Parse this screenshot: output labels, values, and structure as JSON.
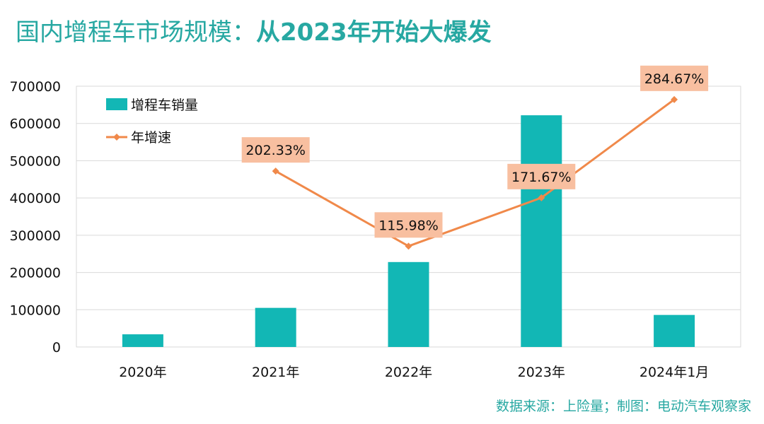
{
  "header": {
    "title_main": "国内增程车市场规模：",
    "title_accent": "从2023年开始大爆发"
  },
  "footer": {
    "source": "数据来源：上险量；制图：电动汽车观察家"
  },
  "colors": {
    "title": "#27a8a2",
    "bar": "#12b7b5",
    "line": "#f0894a",
    "label_box": "#f8bfa0",
    "grid": "#d9d9d9"
  },
  "chart_data": {
    "type": "bar",
    "categories": [
      "2020年",
      "2021年",
      "2022年",
      "2023年",
      "2024年1月"
    ],
    "ylim": [
      0,
      700000
    ],
    "yticks": [
      0,
      100000,
      200000,
      300000,
      400000,
      500000,
      600000,
      700000
    ],
    "grid": true,
    "legend_position": "top-left",
    "series": [
      {
        "name": "增程车销量",
        "type": "bar",
        "values": [
          34000,
          105000,
          228000,
          622000,
          86000
        ]
      },
      {
        "name": "年增速",
        "type": "line",
        "values": [
          null,
          202.33,
          115.98,
          171.67,
          284.67
        ],
        "data_labels": [
          null,
          "202.33%",
          "115.98%",
          "171.67%",
          "284.67%"
        ]
      }
    ]
  }
}
